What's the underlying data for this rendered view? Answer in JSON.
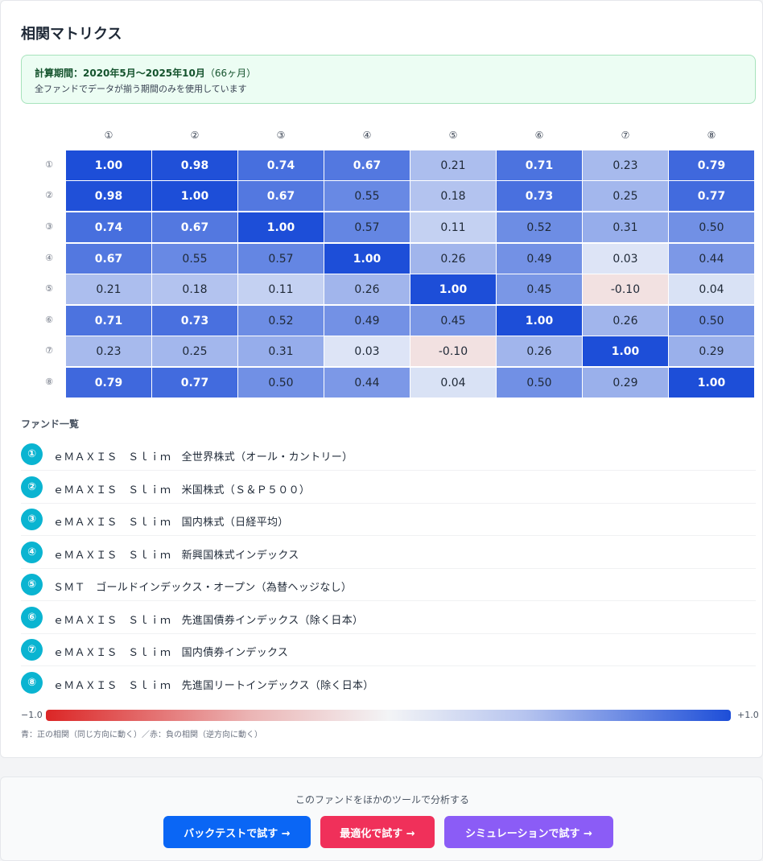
{
  "card": {
    "title": "相関マトリクス",
    "period_label": "計算期間：2020年5月〜2025年10月",
    "period_months": "（66ヶ月）",
    "period_note": "全ファンドでデータが揃う期間のみを使用しています"
  },
  "matrix": {
    "labels": [
      "①",
      "②",
      "③",
      "④",
      "⑤",
      "⑥",
      "⑦",
      "⑧"
    ],
    "values": [
      [
        "1.00",
        "0.98",
        "0.74",
        "0.67",
        "0.21",
        "0.71",
        "0.23",
        "0.79"
      ],
      [
        "0.98",
        "1.00",
        "0.67",
        "0.55",
        "0.18",
        "0.73",
        "0.25",
        "0.77"
      ],
      [
        "0.74",
        "0.67",
        "1.00",
        "0.57",
        "0.11",
        "0.52",
        "0.31",
        "0.50"
      ],
      [
        "0.67",
        "0.55",
        "0.57",
        "1.00",
        "0.26",
        "0.49",
        "0.03",
        "0.44"
      ],
      [
        "0.21",
        "0.18",
        "0.11",
        "0.26",
        "1.00",
        "0.45",
        "-0.10",
        "0.04"
      ],
      [
        "0.71",
        "0.73",
        "0.52",
        "0.49",
        "0.45",
        "1.00",
        "0.26",
        "0.50"
      ],
      [
        "0.23",
        "0.25",
        "0.31",
        "0.03",
        "-0.10",
        "0.26",
        "1.00",
        "0.29"
      ],
      [
        "0.79",
        "0.77",
        "0.50",
        "0.44",
        "0.04",
        "0.50",
        "0.29",
        "1.00"
      ]
    ],
    "positive_color": "#1d4ed8",
    "negative_color": "#dc2626",
    "neutral_color": "#f3f4f6"
  },
  "fund_list": {
    "title": "ファンド一覧",
    "items": [
      {
        "badge": "①",
        "name": "ｅＭＡＸＩＳ　Ｓｌｉｍ　全世界株式（オール・カントリー）"
      },
      {
        "badge": "②",
        "name": "ｅＭＡＸＩＳ　Ｓｌｉｍ　米国株式（Ｓ＆Ｐ５００）"
      },
      {
        "badge": "③",
        "name": "ｅＭＡＸＩＳ　Ｓｌｉｍ　国内株式（日経平均）"
      },
      {
        "badge": "④",
        "name": "ｅＭＡＸＩＳ　Ｓｌｉｍ　新興国株式インデックス"
      },
      {
        "badge": "⑤",
        "name": "ＳＭＴ　ゴールドインデックス・オープン（為替ヘッジなし）"
      },
      {
        "badge": "⑥",
        "name": "ｅＭＡＸＩＳ　Ｓｌｉｍ　先進国債券インデックス（除く日本）"
      },
      {
        "badge": "⑦",
        "name": "ｅＭＡＸＩＳ　Ｓｌｉｍ　国内債券インデックス"
      },
      {
        "badge": "⑧",
        "name": "ｅＭＡＸＩＳ　Ｓｌｉｍ　先進国リートインデックス（除く日本）"
      }
    ],
    "badge_color": "#0ab4d1"
  },
  "scale": {
    "min_label": "−1.0",
    "max_label": "+1.0",
    "note": "青：正の相関（同じ方向に動く）／赤：負の相関（逆方向に動く）"
  },
  "cta": {
    "text": "このファンドをほかのツールで分析する",
    "buttons": [
      {
        "label": "バックテストで試す →",
        "color": "#0a66f5"
      },
      {
        "label": "最適化で試す →",
        "color": "#f0305a"
      },
      {
        "label": "シミュレーションで試す →",
        "color": "#8b5cf6"
      }
    ]
  }
}
